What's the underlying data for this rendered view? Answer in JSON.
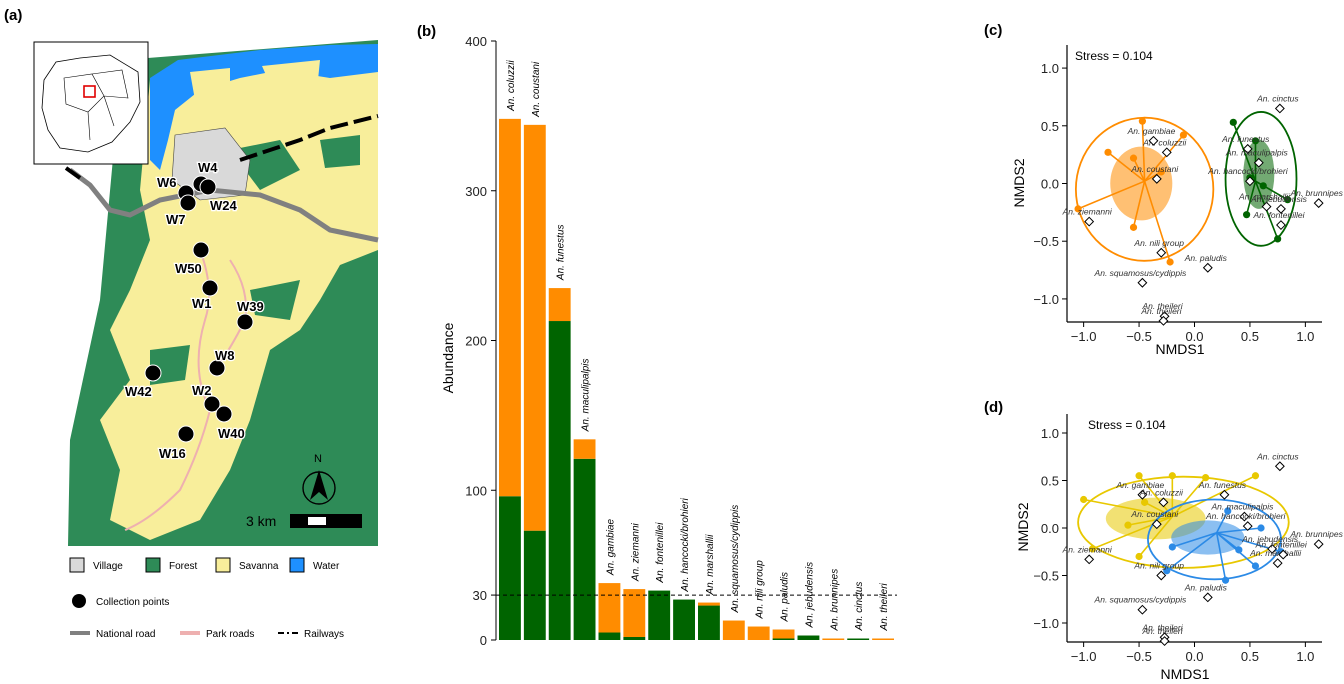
{
  "panel_labels": [
    "(a)",
    "(b)",
    "(c)",
    "(d)"
  ],
  "map": {
    "sites": [
      "W4",
      "W6",
      "W24",
      "W7",
      "W50",
      "W1",
      "W39",
      "W8",
      "W42",
      "W2",
      "W40",
      "W16"
    ],
    "north_label": "N",
    "scale_label": "3 km",
    "legend": {
      "land_cover": [
        {
          "label": "Village",
          "color": "#d9d9d9"
        },
        {
          "label": "Forest",
          "color": "#2e8b57"
        },
        {
          "label": "Savanna",
          "color": "#f8ee9b"
        },
        {
          "label": "Water",
          "color": "#1e90ff"
        }
      ],
      "points_label": "Collection points",
      "lines": [
        {
          "label": "National road",
          "color": "#808080"
        },
        {
          "label": "Park roads",
          "color": "#eeb0b0"
        },
        {
          "label": "Railways",
          "color": "#000000"
        }
      ]
    }
  },
  "colors": {
    "green": "#006400",
    "orange": "#ff8c00",
    "gold": "#e8c800",
    "blue": "#2b8ae6",
    "forest": "#2e8b57",
    "savanna": "#f8ee9b",
    "water": "#1e90ff"
  },
  "chart_data": [
    {
      "panel": "(b)",
      "type": "bar",
      "stacked": true,
      "ylabel": "Abundance",
      "yticks": [
        0,
        30,
        100,
        200,
        300,
        400
      ],
      "ylim": [
        0,
        400
      ],
      "reference_line": 30,
      "categories": [
        "An. coluzzii",
        "An. coustani",
        "An. funestus",
        "An. maculipalpis",
        "An. gambiae",
        "An. ziemanni",
        "An. fontenillei",
        "An. hancocki/brohieri",
        "An. marshallii",
        "An. squamosus/cydippis",
        "An. nili group",
        "An. paludis",
        "An. jebudensis",
        "An. brunnipes",
        "An. cinctus",
        "An. theileri"
      ],
      "series": [
        {
          "color": "#006400",
          "values": [
            96,
            73,
            213,
            121,
            5,
            2,
            33,
            27,
            23,
            0,
            0,
            1,
            3,
            0,
            1,
            0
          ]
        },
        {
          "color": "#ff8c00",
          "values": [
            252,
            271,
            22,
            13,
            33,
            32,
            0,
            0,
            2,
            13,
            9,
            6,
            0,
            1,
            0,
            1
          ]
        }
      ]
    },
    {
      "panel": "(c)",
      "type": "scatter",
      "stress_label": "Stress = 0.104",
      "xlabel": "NMDS1",
      "ylabel": "NMDS2",
      "xticks": [
        "-1.0",
        "-0.5",
        "0.0",
        "0.5",
        "1.0"
      ],
      "yticks": [
        "-1.0",
        "-0.5",
        "0.0",
        "0.5",
        "1.0"
      ],
      "xlim": [
        -1.15,
        1.15
      ],
      "ylim": [
        -1.2,
        1.2
      ],
      "species": [
        {
          "label": "An. coluzzii",
          "x": -0.25,
          "y": 0.27
        },
        {
          "label": "An. gambiae",
          "x": -0.37,
          "y": 0.37
        },
        {
          "label": "An. coustani",
          "x": -0.34,
          "y": 0.04
        },
        {
          "label": "An. ziemanni",
          "x": -0.95,
          "y": -0.33
        },
        {
          "label": "An. nili group",
          "x": -0.3,
          "y": -0.6
        },
        {
          "label": "An. squamosus/cydippis",
          "x": -0.47,
          "y": -0.86
        },
        {
          "label": "An. theileri",
          "x": -0.27,
          "y": -1.15
        },
        {
          "label": "An. theileri",
          "x": -0.28,
          "y": -1.19
        },
        {
          "label": "An. paludis",
          "x": 0.12,
          "y": -0.73
        },
        {
          "label": "An. hancocki/brohieri",
          "x": 0.5,
          "y": 0.02
        },
        {
          "label": "An. funestus",
          "x": 0.48,
          "y": 0.3
        },
        {
          "label": "An. maculipalpis",
          "x": 0.58,
          "y": 0.18
        },
        {
          "label": "An. marshallii",
          "x": 0.65,
          "y": -0.2
        },
        {
          "label": "An. jebudensis",
          "x": 0.78,
          "y": -0.22
        },
        {
          "label": "An. fontenillei",
          "x": 0.78,
          "y": -0.36
        },
        {
          "label": "An. cinctus",
          "x": 0.77,
          "y": 0.65
        },
        {
          "label": "An. brunnipes",
          "x": 1.12,
          "y": -0.17
        }
      ],
      "groups": [
        {
          "color": "#ff8c00",
          "centroid": [
            -0.45,
            0.02
          ],
          "ellipse": {
            "cx": -0.45,
            "cy": -0.05,
            "rx": 0.62,
            "ry": 0.62
          },
          "spread": {
            "cx": -0.48,
            "cy": 0.0,
            "rx": 0.28,
            "ry": 0.32
          },
          "points": [
            [
              -0.47,
              0.54
            ],
            [
              -0.1,
              0.42
            ],
            [
              -0.78,
              0.27
            ],
            [
              -0.55,
              0.22
            ],
            [
              -0.3,
              0.1
            ],
            [
              -1.05,
              -0.22
            ],
            [
              -0.55,
              -0.38
            ],
            [
              -0.22,
              -0.68
            ]
          ]
        },
        {
          "color": "#006400",
          "centroid": [
            0.55,
            0.02
          ],
          "ellipse": {
            "cx": 0.6,
            "cy": 0.04,
            "rx": 0.32,
            "ry": 0.58
          },
          "spread": {
            "cx": 0.58,
            "cy": 0.08,
            "rx": 0.14,
            "ry": 0.3
          },
          "points": [
            [
              0.35,
              0.53
            ],
            [
              0.55,
              0.37
            ],
            [
              0.5,
              0.05
            ],
            [
              0.62,
              -0.02
            ],
            [
              0.84,
              -0.14
            ],
            [
              0.47,
              -0.27
            ],
            [
              0.75,
              -0.48
            ]
          ]
        }
      ]
    },
    {
      "panel": "(d)",
      "type": "scatter",
      "stress_label": "Stress = 0.104",
      "xlabel": "NMDS1",
      "ylabel": "NMDS2",
      "xticks": [
        "-1.0",
        "-0.5",
        "0.0",
        "0.5",
        "1.0"
      ],
      "yticks": [
        "-1.0",
        "-0.5",
        "0.0",
        "0.5",
        "1.0"
      ],
      "xlim": [
        -1.15,
        1.15
      ],
      "ylim": [
        -1.2,
        1.2
      ],
      "species": [
        {
          "label": "An. gambiae",
          "x": -0.47,
          "y": 0.35
        },
        {
          "label": "An. funestus",
          "x": 0.27,
          "y": 0.35
        },
        {
          "label": "An. cinctus",
          "x": 0.77,
          "y": 0.65
        },
        {
          "label": "An. coluzzii",
          "x": -0.28,
          "y": 0.27
        },
        {
          "label": "An. maculipalpis",
          "x": 0.45,
          "y": 0.12
        },
        {
          "label": "An. ziemanni",
          "x": -0.95,
          "y": -0.33
        },
        {
          "label": "An. coustani",
          "x": -0.34,
          "y": 0.04
        },
        {
          "label": "An. hancocki/brohieri",
          "x": 0.48,
          "y": 0.02
        },
        {
          "label": "An. jebudensis",
          "x": 0.7,
          "y": -0.22
        },
        {
          "label": "An. brunnipes",
          "x": 1.12,
          "y": -0.17
        },
        {
          "label": "An. nili group",
          "x": -0.3,
          "y": -0.5
        },
        {
          "label": "An. marshallii",
          "x": 0.75,
          "y": -0.37
        },
        {
          "label": "An. fontenillei",
          "x": 0.8,
          "y": -0.28
        },
        {
          "label": "An. squamosus/cydippis",
          "x": -0.47,
          "y": -0.86
        },
        {
          "label": "An. paludis",
          "x": 0.12,
          "y": -0.73
        },
        {
          "label": "An. theileri",
          "x": -0.27,
          "y": -1.15
        },
        {
          "label": "An. theileri",
          "x": -0.27,
          "y": -1.19
        }
      ],
      "groups": [
        {
          "color": "#e8c800",
          "centroid": [
            -0.2,
            0.12
          ],
          "ellipse": {
            "cx": -0.1,
            "cy": 0.06,
            "rx": 0.95,
            "ry": 0.48
          },
          "spread": {
            "cx": -0.35,
            "cy": 0.1,
            "rx": 0.45,
            "ry": 0.22
          },
          "points": [
            [
              -0.5,
              0.55
            ],
            [
              -0.2,
              0.55
            ],
            [
              0.1,
              0.53
            ],
            [
              0.55,
              0.55
            ],
            [
              -1.0,
              0.3
            ],
            [
              -0.45,
              0.27
            ],
            [
              -0.6,
              0.03
            ],
            [
              -0.92,
              -0.22
            ],
            [
              -0.5,
              -0.3
            ]
          ]
        },
        {
          "color": "#2b8ae6",
          "centroid": [
            0.2,
            -0.05
          ],
          "ellipse": {
            "cx": 0.18,
            "cy": -0.12,
            "rx": 0.6,
            "ry": 0.42
          },
          "spread": {
            "cx": 0.12,
            "cy": -0.1,
            "rx": 0.33,
            "ry": 0.18
          },
          "points": [
            [
              0.3,
              0.18
            ],
            [
              0.6,
              0.0
            ],
            [
              -0.2,
              -0.2
            ],
            [
              0.4,
              -0.23
            ],
            [
              0.78,
              -0.25
            ],
            [
              -0.25,
              -0.45
            ],
            [
              0.55,
              -0.4
            ],
            [
              0.28,
              -0.55
            ]
          ]
        }
      ]
    }
  ]
}
